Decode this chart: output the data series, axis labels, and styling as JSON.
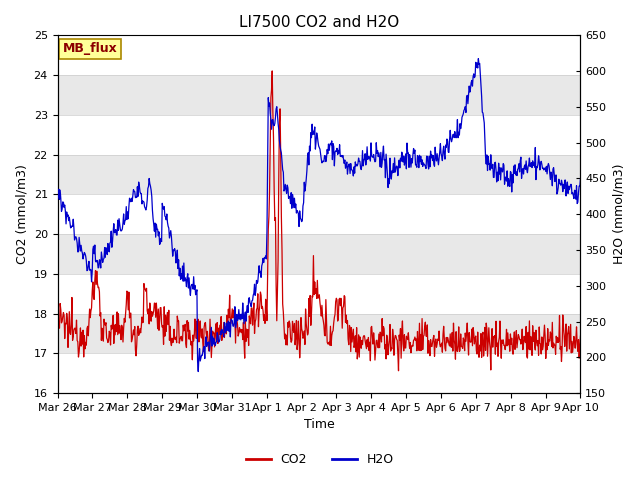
{
  "title": "LI7500 CO2 and H2O",
  "xlabel": "Time",
  "ylabel_left": "CO2 (mmol/m3)",
  "ylabel_right": "H2O (mmol/m3)",
  "co2_ylim": [
    16.0,
    25.0
  ],
  "h2o_ylim": [
    150,
    650
  ],
  "co2_color": "#cc0000",
  "h2o_color": "#0000cc",
  "background_color": "#ffffff",
  "annotation_text": "MB_flux",
  "annotation_bg": "#ffff99",
  "annotation_border": "#aa8800",
  "x_tick_labels": [
    "Mar 26",
    "Mar 27",
    "Mar 28",
    "Mar 29",
    "Mar 30",
    "Mar 31",
    "Apr 1",
    "Apr 2",
    "Apr 3",
    "Apr 4",
    "Apr 5",
    "Apr 6",
    "Apr 7",
    "Apr 8",
    "Apr 9",
    "Apr 10"
  ],
  "legend_co2": "CO2",
  "legend_h2o": "H2O",
  "title_fontsize": 11,
  "axis_fontsize": 9,
  "tick_fontsize": 8,
  "legend_fontsize": 9,
  "band_color": "#e8e8e8",
  "line_color_sep": "#cccccc"
}
